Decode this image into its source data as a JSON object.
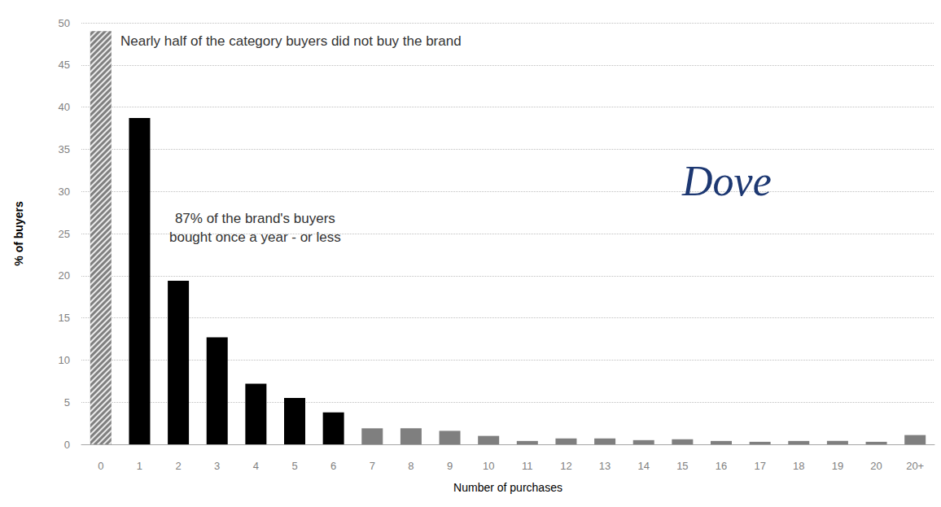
{
  "chart_data": {
    "type": "bar",
    "categories": [
      "0",
      "1",
      "2",
      "3",
      "4",
      "5",
      "6",
      "7",
      "8",
      "9",
      "10",
      "11",
      "12",
      "13",
      "14",
      "15",
      "16",
      "17",
      "18",
      "19",
      "20",
      "20+"
    ],
    "values": [
      49,
      38.7,
      19.4,
      12.7,
      7.2,
      5.5,
      3.8,
      1.9,
      1.9,
      1.6,
      1.0,
      0.4,
      0.7,
      0.7,
      0.5,
      0.6,
      0.4,
      0.3,
      0.4,
      0.4,
      0.3,
      1.1
    ],
    "colors": [
      "#808080",
      "#000000",
      "#000000",
      "#000000",
      "#000000",
      "#000000",
      "#000000",
      "#7f7f7f",
      "#7f7f7f",
      "#7f7f7f",
      "#7f7f7f",
      "#7f7f7f",
      "#7f7f7f",
      "#7f7f7f",
      "#7f7f7f",
      "#7f7f7f",
      "#7f7f7f",
      "#7f7f7f",
      "#7f7f7f",
      "#7f7f7f",
      "#7f7f7f",
      "#7f7f7f"
    ],
    "x_label": "Number of purchases",
    "y_label": "% of buyers",
    "ylim": [
      0,
      50
    ],
    "yticks": [
      0,
      5,
      10,
      15,
      20,
      25,
      30,
      35,
      40,
      45,
      50
    ],
    "grid": true,
    "annotations": [
      "Nearly half of the category buyers did not buy the brand",
      "87% of the brand's buyers\nbought once a year - or less",
      "Dove"
    ]
  }
}
